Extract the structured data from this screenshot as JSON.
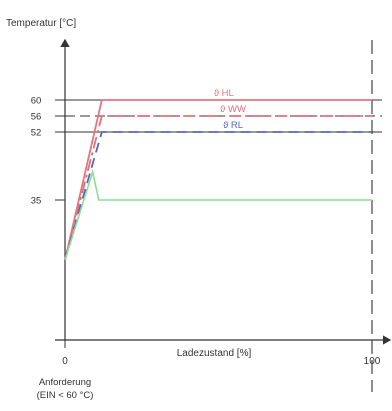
{
  "chart_data": {
    "type": "line",
    "ylabel": "Temperatur [°C]",
    "xlabel": "Ladezustand [%]",
    "x_ticks": [
      0,
      100
    ],
    "y_ticks": [
      35,
      52,
      56,
      60
    ],
    "xlim": [
      0,
      100
    ],
    "ylim": [
      0,
      80
    ],
    "start_note": [
      "Anforderung",
      "(EIN < 60 °C)"
    ],
    "series": [
      {
        "name": "ϑ HL",
        "color": "#e5747f",
        "dash": "solid",
        "points": [
          [
            0,
            20
          ],
          [
            12,
            60
          ],
          [
            100,
            60
          ]
        ]
      },
      {
        "name": "ϑ WW",
        "color": "#e0707c",
        "dash": "dashdot",
        "points": [
          [
            0,
            20
          ],
          [
            12,
            56
          ],
          [
            100,
            56
          ]
        ]
      },
      {
        "name": "ϑ RL",
        "color": "#5568b8",
        "dash": "dash",
        "points": [
          [
            0,
            20
          ],
          [
            12,
            52
          ],
          [
            100,
            52
          ]
        ]
      },
      {
        "name": "",
        "color": "#8fdc9a",
        "dash": "solid",
        "points": [
          [
            0,
            20
          ],
          [
            9,
            42
          ],
          [
            11,
            35
          ],
          [
            100,
            35
          ]
        ]
      }
    ]
  }
}
